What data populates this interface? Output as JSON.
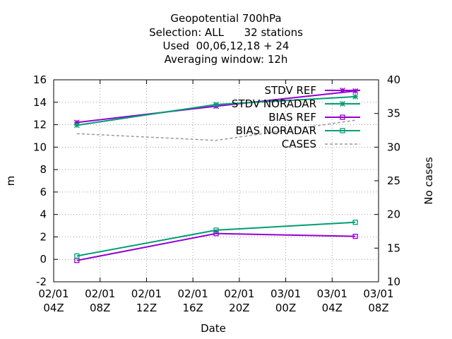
{
  "chart_data": {
    "type": "line",
    "title_lines": [
      "Geopotential 700hPa",
      "Selection: ALL      32 stations",
      "Used  00,06,12,18 + 24",
      "Averaging window: 12h"
    ],
    "xlabel": "Date",
    "ylabel": "m",
    "y2label": "No cases",
    "x_ticks": [
      {
        "h": 4,
        "line1": "02/01",
        "line2": "04Z"
      },
      {
        "h": 8,
        "line1": "02/01",
        "line2": "08Z"
      },
      {
        "h": 12,
        "line1": "02/01",
        "line2": "12Z"
      },
      {
        "h": 16,
        "line1": "02/01",
        "line2": "16Z"
      },
      {
        "h": 20,
        "line1": "02/01",
        "line2": "20Z"
      },
      {
        "h": 24,
        "line1": "03/01",
        "line2": "00Z"
      },
      {
        "h": 28,
        "line1": "03/01",
        "line2": "04Z"
      },
      {
        "h": 32,
        "line1": "03/01",
        "line2": "08Z"
      }
    ],
    "xlim_hours": [
      4,
      32
    ],
    "ylim": [
      -2,
      16
    ],
    "y_ticks": [
      -2,
      0,
      2,
      4,
      6,
      8,
      10,
      12,
      14,
      16
    ],
    "y2lim": [
      10,
      40
    ],
    "y2_ticks": [
      10,
      15,
      20,
      25,
      30,
      35,
      40
    ],
    "grid": true,
    "legend_position": "top-right",
    "series": [
      {
        "name": "STDV REF",
        "axis": "y",
        "color": "#9400d3",
        "marker": "asterisk",
        "dash": false,
        "x_hours": [
          6,
          18,
          30
        ],
        "values": [
          12.2,
          13.65,
          15.0
        ]
      },
      {
        "name": "STDV NORADAR",
        "axis": "y",
        "color": "#009e73",
        "marker": "asterisk",
        "dash": false,
        "x_hours": [
          6,
          18,
          30
        ],
        "values": [
          11.95,
          13.8,
          14.5
        ]
      },
      {
        "name": "BIAS REF",
        "axis": "y",
        "color": "#9400d3",
        "marker": "square",
        "dash": false,
        "x_hours": [
          6,
          18,
          30
        ],
        "values": [
          -0.1,
          2.3,
          2.05
        ]
      },
      {
        "name": "BIAS NORADAR",
        "axis": "y",
        "color": "#009e73",
        "marker": "square",
        "dash": false,
        "x_hours": [
          6,
          18,
          30
        ],
        "values": [
          0.3,
          2.6,
          3.3
        ]
      },
      {
        "name": "CASES",
        "axis": "y2",
        "color": "#999999",
        "marker": "none",
        "dash": true,
        "x_hours": [
          6,
          18,
          30
        ],
        "values": [
          32,
          31,
          34
        ]
      }
    ]
  }
}
